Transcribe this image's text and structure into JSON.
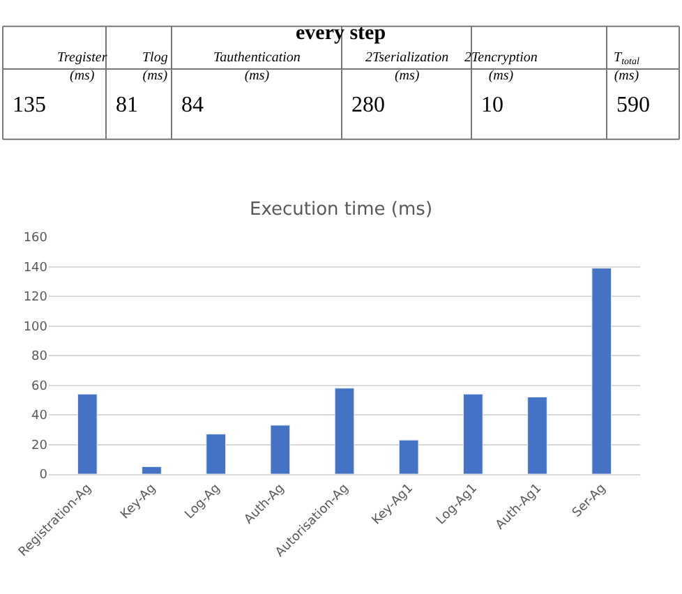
{
  "chart_data": [
    {
      "type": "other",
      "title": "every step",
      "annotations": [
        "Tregister (ms)",
        "Tlog (ms)",
        "Tauthentication (ms)",
        "2Tserialization (ms)",
        "2Tencryption (ms)",
        "T$_{total}$ (ms)",
        "135",
        "81",
        "84",
        "280",
        "10",
        "590"
      ]
    },
    {
      "type": "bar",
      "title": "Execution time (ms)",
      "categories": [
        "Registration-Ag",
        "Key-Ag",
        "Log-Ag",
        "Auth-Ag",
        "Autorisation-Ag",
        "Key-Ag1",
        "Log-Ag1",
        "Auth-Ag1",
        "Ser-Ag"
      ],
      "values": [
        54,
        5,
        27,
        33,
        58,
        23,
        54,
        52,
        139
      ],
      "color": "#4472c4",
      "ylim": [
        0,
        160
      ],
      "yticks": [
        0,
        20,
        40,
        60,
        80,
        100,
        120,
        140,
        160
      ],
      "grid": "y"
    }
  ]
}
